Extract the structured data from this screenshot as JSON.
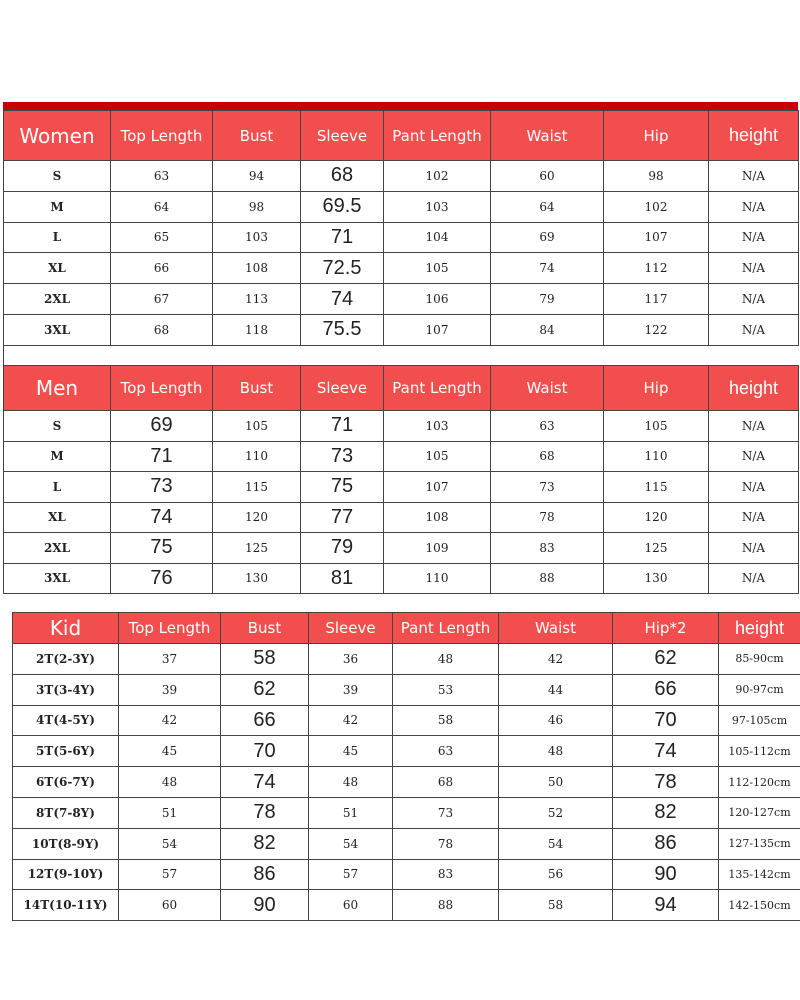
{
  "women": {
    "headers": [
      "Women",
      "Top Length",
      "Bust",
      "Sleeve",
      "Pant Length",
      "Waist",
      "Hip",
      "height"
    ],
    "rows": [
      [
        "S",
        "63",
        "94",
        "68",
        "102",
        "60",
        "98",
        "N/A"
      ],
      [
        "M",
        "64",
        "98",
        "69.5",
        "103",
        "64",
        "102",
        "N/A"
      ],
      [
        "L",
        "65",
        "103",
        "71",
        "104",
        "69",
        "107",
        "N/A"
      ],
      [
        "XL",
        "66",
        "108",
        "72.5",
        "105",
        "74",
        "112",
        "N/A"
      ],
      [
        "2XL",
        "67",
        "113",
        "74",
        "106",
        "79",
        "117",
        "N/A"
      ],
      [
        "3XL",
        "68",
        "118",
        "75.5",
        "107",
        "84",
        "122",
        "N/A"
      ]
    ]
  },
  "men": {
    "headers": [
      "Men",
      "Top Length",
      "Bust",
      "Sleeve",
      "Pant Length",
      "Waist",
      "Hip",
      "height"
    ],
    "rows": [
      [
        "S",
        "69",
        "105",
        "71",
        "103",
        "63",
        "105",
        "N/A"
      ],
      [
        "M",
        "71",
        "110",
        "73",
        "105",
        "68",
        "110",
        "N/A"
      ],
      [
        "L",
        "73",
        "115",
        "75",
        "107",
        "73",
        "115",
        "N/A"
      ],
      [
        "XL",
        "74",
        "120",
        "77",
        "108",
        "78",
        "120",
        "N/A"
      ],
      [
        "2XL",
        "75",
        "125",
        "79",
        "109",
        "83",
        "125",
        "N/A"
      ],
      [
        "3XL",
        "76",
        "130",
        "81",
        "110",
        "88",
        "130",
        "N/A"
      ]
    ]
  },
  "kid": {
    "headers": [
      "Kid",
      "Top Length",
      "Bust",
      "Sleeve",
      "Pant Length",
      "Waist",
      "Hip*2",
      "height"
    ],
    "rows": [
      [
        "2T(2-3Y)",
        "37",
        "58",
        "36",
        "48",
        "42",
        "62",
        "85-90cm"
      ],
      [
        "3T(3-4Y)",
        "39",
        "62",
        "39",
        "53",
        "44",
        "66",
        "90-97cm"
      ],
      [
        "4T(4-5Y)",
        "42",
        "66",
        "42",
        "58",
        "46",
        "70",
        "97-105cm"
      ],
      [
        "5T(5-6Y)",
        "45",
        "70",
        "45",
        "63",
        "48",
        "74",
        "105-112cm"
      ],
      [
        "6T(6-7Y)",
        "48",
        "74",
        "48",
        "68",
        "50",
        "78",
        "112-120cm"
      ],
      [
        "8T(7-8Y)",
        "51",
        "78",
        "51",
        "73",
        "52",
        "82",
        "120-127cm"
      ],
      [
        "10T(8-9Y)",
        "54",
        "82",
        "54",
        "78",
        "54",
        "86",
        "127-135cm"
      ],
      [
        "12T(9-10Y)",
        "57",
        "86",
        "57",
        "83",
        "56",
        "90",
        "135-142cm"
      ],
      [
        "14T(10-11Y)",
        "60",
        "90",
        "60",
        "88",
        "58",
        "94",
        "142-150cm"
      ]
    ]
  },
  "colors": {
    "header_bg": "#f24e4e",
    "top_band": "#c80000"
  }
}
